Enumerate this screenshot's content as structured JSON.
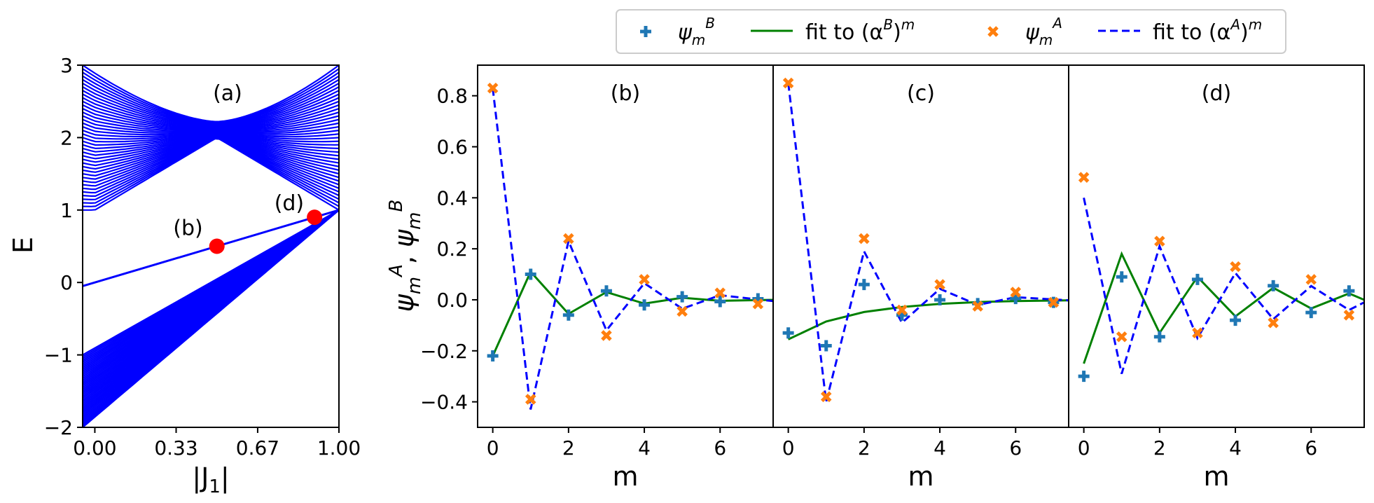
{
  "colors": {
    "band": "#0000ff",
    "marker_red": "#ff0000",
    "psiB": "#1f77b4",
    "psiA": "#ff7f0e",
    "fitB": "#008000",
    "fitA": "#0000ff"
  },
  "legend": {
    "entries": [
      {
        "marker": "plus",
        "label": "ψ",
        "sub": "m",
        "sup": "B"
      },
      {
        "marker": "green-line",
        "label": "fit  to (α",
        "sup": "B",
        "tail": ")",
        "tail_sup": "m"
      },
      {
        "marker": "x",
        "label": "ψ",
        "sub": "m",
        "sup": "A"
      },
      {
        "marker": "blue-dash",
        "label": "fit  to (α",
        "sup": "A",
        "tail": ")",
        "tail_sup": "m"
      }
    ]
  },
  "chart_data": [
    {
      "id": "a",
      "type": "line",
      "panel_label": "(a)",
      "xlabel": "|J",
      "xlabel_sub": "1",
      "xlabel_tail": "|",
      "ylabel": "E",
      "xlim": [
        -0.05,
        1.0
      ],
      "ylim": [
        -2,
        3
      ],
      "xticks": [
        0.0,
        0.333,
        0.667,
        1.0
      ],
      "xtick_labels": [
        "0.00",
        "0.33",
        "0.67",
        "1.00"
      ],
      "yticks": [
        -2,
        -1,
        0,
        1,
        2,
        3
      ],
      "ytick_labels": [
        "−2",
        "−1",
        "0",
        "1",
        "2",
        "3"
      ],
      "bands_description": "Blue energy band lines: upper band from E=1..3 pinching near |J1|=0.5 (E≈2), edge state line E from 0 to 1, lower band fanning from E=-1..-2 toward E=1 at |J1|=1",
      "edge_state": {
        "x": [
          0.0,
          1.0
        ],
        "y": [
          0.0,
          1.0
        ]
      },
      "points": [
        {
          "label": "(b)",
          "x": 0.5,
          "y": 0.5
        },
        {
          "label": "(d)",
          "x": 0.9,
          "y": 0.9
        }
      ]
    },
    {
      "id": "b",
      "type": "scatter+line",
      "panel_label": "(b)",
      "xlabel": "m",
      "ylabel": "ψ",
      "ylim": [
        -0.5,
        0.92
      ],
      "xlim": [
        -0.4,
        7.4
      ],
      "xticks": [
        0,
        2,
        4,
        6
      ],
      "xtick_labels": [
        "0",
        "2",
        "4",
        "6"
      ],
      "yticks": [
        -0.4,
        -0.2,
        0.0,
        0.2,
        0.4,
        0.6,
        0.8
      ],
      "ytick_labels": [
        "−0.4",
        "−0.2",
        "0.0",
        "0.2",
        "0.4",
        "0.6",
        "0.8"
      ],
      "series": [
        {
          "name": "psiB",
          "x": [
            0,
            1,
            2,
            3,
            4,
            5,
            6,
            7
          ],
          "values": [
            -0.22,
            0.1,
            -0.06,
            0.035,
            -0.02,
            0.012,
            -0.007,
            0.004
          ]
        },
        {
          "name": "fitB",
          "x": [
            0,
            1,
            2,
            3,
            4,
            5,
            6,
            7.4
          ],
          "values": [
            -0.22,
            0.11,
            -0.055,
            0.03,
            -0.015,
            0.008,
            -0.004,
            0.0
          ]
        },
        {
          "name": "psiA",
          "x": [
            0,
            1,
            2,
            3,
            4,
            5,
            6,
            7
          ],
          "values": [
            0.83,
            -0.39,
            0.24,
            -0.14,
            0.08,
            -0.045,
            0.027,
            -0.016
          ]
        },
        {
          "name": "fitA",
          "x": [
            0,
            1,
            2,
            3,
            4,
            5,
            6,
            7.4
          ],
          "values": [
            0.83,
            -0.43,
            0.23,
            -0.12,
            0.065,
            -0.035,
            0.018,
            -0.005
          ]
        }
      ]
    },
    {
      "id": "c",
      "type": "scatter+line",
      "panel_label": "(c)",
      "xlabel": "m",
      "ylim": [
        -0.5,
        0.92
      ],
      "xlim": [
        -0.4,
        7.4
      ],
      "xticks": [
        0,
        2,
        4,
        6
      ],
      "xtick_labels": [
        "0",
        "2",
        "4",
        "6"
      ],
      "series": [
        {
          "name": "psiB",
          "x": [
            0,
            1,
            2,
            3,
            4,
            5,
            6,
            7
          ],
          "values": [
            -0.13,
            -0.18,
            0.06,
            -0.06,
            0.0,
            -0.015,
            0.005,
            -0.01
          ]
        },
        {
          "name": "fitB",
          "x": [
            0,
            1,
            2,
            3,
            4,
            5,
            6,
            7.4
          ],
          "values": [
            -0.155,
            -0.085,
            -0.048,
            -0.028,
            -0.016,
            -0.009,
            -0.005,
            -0.002
          ]
        },
        {
          "name": "psiA",
          "x": [
            0,
            1,
            2,
            3,
            4,
            5,
            6,
            7
          ],
          "values": [
            0.85,
            -0.38,
            0.24,
            -0.04,
            0.06,
            -0.025,
            0.03,
            -0.01
          ]
        },
        {
          "name": "fitA",
          "x": [
            0,
            1,
            2,
            3,
            4,
            5,
            6,
            7.4
          ],
          "values": [
            0.85,
            -0.4,
            0.19,
            -0.09,
            0.043,
            -0.02,
            0.01,
            -0.002
          ]
        }
      ]
    },
    {
      "id": "d",
      "type": "scatter+line",
      "panel_label": "(d)",
      "xlabel": "m",
      "ylim": [
        -0.5,
        0.92
      ],
      "xlim": [
        -0.4,
        7.4
      ],
      "xticks": [
        0,
        2,
        4,
        6
      ],
      "xtick_labels": [
        "0",
        "2",
        "4",
        "6"
      ],
      "series": [
        {
          "name": "psiB",
          "x": [
            0,
            1,
            2,
            3,
            4,
            5,
            6,
            7
          ],
          "values": [
            -0.3,
            0.09,
            -0.145,
            0.08,
            -0.08,
            0.055,
            -0.05,
            0.035
          ]
        },
        {
          "name": "fitB",
          "x": [
            0,
            1,
            2,
            3,
            4,
            5,
            6,
            7,
            7.4
          ],
          "values": [
            -0.25,
            0.18,
            -0.13,
            0.09,
            -0.065,
            0.047,
            -0.034,
            0.025,
            0.0
          ]
        },
        {
          "name": "psiA",
          "x": [
            0,
            1,
            2,
            3,
            4,
            5,
            6,
            7
          ],
          "values": [
            0.48,
            -0.145,
            0.23,
            -0.13,
            0.13,
            -0.09,
            0.08,
            -0.06
          ]
        },
        {
          "name": "fitA",
          "x": [
            0,
            1,
            2,
            3,
            4,
            5,
            6,
            7,
            7.4
          ],
          "values": [
            0.4,
            -0.29,
            0.21,
            -0.15,
            0.105,
            -0.076,
            0.054,
            -0.04,
            -0.01
          ]
        }
      ]
    }
  ]
}
